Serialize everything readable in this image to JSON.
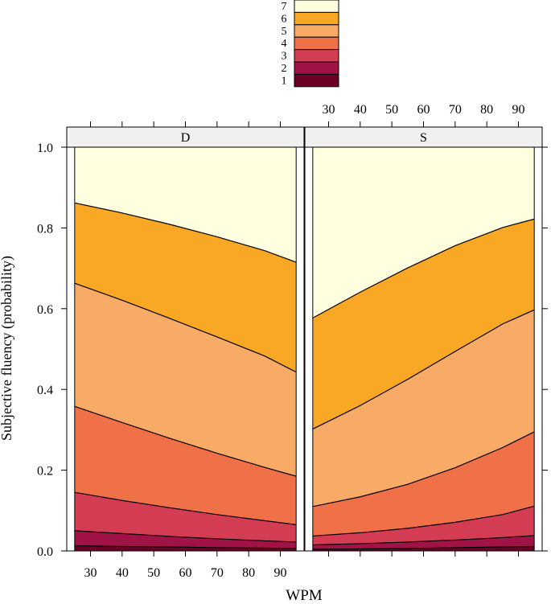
{
  "chart_data": {
    "type": "area",
    "subtype": "stacked cumulative probability bands",
    "xlabel": "WPM",
    "ylabel": "Subjective fluency (probability)",
    "x_ticks": [
      30,
      40,
      50,
      60,
      70,
      80,
      90
    ],
    "y_ticks": [
      "0.0",
      "0.2",
      "0.4",
      "0.6",
      "0.8",
      "1.0"
    ],
    "xlim": [
      22.5,
      97.5
    ],
    "ylim": [
      0,
      1
    ],
    "legend": {
      "placement": "top-center",
      "entries": [
        {
          "label": "7",
          "color": "#FFFFE0"
        },
        {
          "label": "6",
          "color": "#F9A825"
        },
        {
          "label": "5",
          "color": "#F8AB66"
        },
        {
          "label": "4",
          "color": "#F07048"
        },
        {
          "label": "3",
          "color": "#D43C53"
        },
        {
          "label": "2",
          "color": "#A11246"
        },
        {
          "label": "1",
          "color": "#6B0026"
        }
      ]
    },
    "category_colors": {
      "1": "#6B0026",
      "2": "#A11246",
      "3": "#D43C53",
      "4": "#F07048",
      "5": "#F8AB66",
      "6": "#F9A825",
      "7": "#FFFFE0"
    },
    "panels": [
      {
        "name": "D",
        "x": [
          25,
          40,
          55,
          70,
          85,
          95
        ],
        "cumulative": [
          {
            "upto": "1",
            "values": [
              0.013,
              0.011,
              0.01,
              0.008,
              0.007,
              0.006
            ]
          },
          {
            "upto": "2",
            "values": [
              0.05,
              0.043,
              0.036,
              0.03,
              0.025,
              0.022
            ]
          },
          {
            "upto": "3",
            "values": [
              0.145,
              0.125,
              0.107,
              0.09,
              0.075,
              0.065
            ]
          },
          {
            "upto": "4",
            "values": [
              0.358,
              0.318,
              0.279,
              0.242,
              0.207,
              0.185
            ]
          },
          {
            "upto": "5",
            "values": [
              0.663,
              0.621,
              0.576,
              0.53,
              0.483,
              0.443
            ]
          },
          {
            "upto": "6",
            "values": [
              0.862,
              0.837,
              0.809,
              0.778,
              0.744,
              0.715
            ]
          }
        ]
      },
      {
        "name": "S",
        "x": [
          25,
          40,
          55,
          70,
          85,
          95
        ],
        "cumulative": [
          {
            "upto": "1",
            "values": [
              0.004,
              0.005,
              0.006,
              0.008,
              0.01,
              0.011
            ]
          },
          {
            "upto": "2",
            "values": [
              0.015,
              0.018,
              0.022,
              0.027,
              0.033,
              0.038
            ]
          },
          {
            "upto": "3",
            "values": [
              0.037,
              0.045,
              0.056,
              0.071,
              0.09,
              0.111
            ]
          },
          {
            "upto": "4",
            "values": [
              0.11,
              0.134,
              0.165,
              0.206,
              0.256,
              0.295
            ]
          },
          {
            "upto": "5",
            "values": [
              0.302,
              0.36,
              0.425,
              0.494,
              0.562,
              0.597
            ]
          },
          {
            "upto": "6",
            "values": [
              0.577,
              0.641,
              0.701,
              0.756,
              0.801,
              0.822
            ]
          }
        ]
      }
    ]
  }
}
